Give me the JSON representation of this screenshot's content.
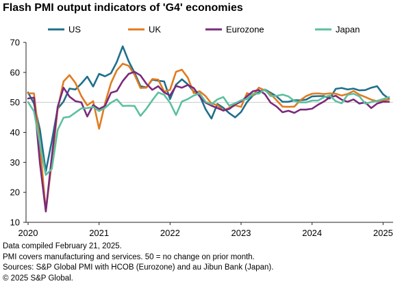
{
  "title": "Flash PMI output indicators of 'G4' economies",
  "chart_data": {
    "type": "line",
    "title": "Flash PMI output indicators of 'G4' economies",
    "xlabel": "",
    "ylabel": "",
    "ylim": [
      10,
      70
    ],
    "y_ticks": [
      10,
      20,
      30,
      40,
      50,
      60,
      70
    ],
    "x_ticks": [
      "2020",
      "2021",
      "2022",
      "2023",
      "2024",
      "2025"
    ],
    "reference_line": 50,
    "grid": false,
    "legend_position": "top",
    "x_start": "2020-01",
    "series": [
      {
        "name": "US",
        "color": "#1f6f8b",
        "values": [
          53.3,
          49.6,
          40.9,
          27.0,
          37.0,
          47.9,
          50.3,
          54.6,
          54.3,
          56.3,
          58.6,
          55.3,
          59.5,
          58.7,
          59.7,
          63.5,
          68.7,
          63.7,
          59.9,
          55.4,
          55.0,
          57.6,
          57.2,
          57.0,
          51.1,
          55.9,
          57.7,
          56.0,
          53.6,
          52.3,
          47.7,
          44.6,
          49.5,
          48.2,
          46.4,
          45.0,
          46.8,
          50.1,
          52.3,
          53.4,
          54.3,
          53.2,
          52.0,
          50.2,
          50.2,
          50.7,
          50.7,
          50.9,
          52.0,
          52.1,
          52.1,
          51.3,
          54.5,
          54.8,
          54.3,
          54.6,
          54.0,
          54.1,
          54.9,
          55.4,
          52.7,
          51.2
        ]
      },
      {
        "name": "UK",
        "color": "#e07b1f",
        "values": [
          53.0,
          53.0,
          36.0,
          13.8,
          30.0,
          47.7,
          57.0,
          59.1,
          56.5,
          52.1,
          49.0,
          50.4,
          41.2,
          49.6,
          56.4,
          60.7,
          62.9,
          62.2,
          59.2,
          54.8,
          54.9,
          57.8,
          57.6,
          53.6,
          54.2,
          60.2,
          60.9,
          58.2,
          53.1,
          53.7,
          52.1,
          49.6,
          49.1,
          47.2,
          48.2,
          49.0,
          48.5,
          53.1,
          52.2,
          54.9,
          54.0,
          52.8,
          50.7,
          48.6,
          48.5,
          48.6,
          50.7,
          52.1,
          52.9,
          53.0,
          52.8,
          53.0,
          52.9,
          52.3,
          52.8,
          53.8,
          52.6,
          51.8,
          50.9,
          50.4,
          50.6,
          51.0
        ]
      },
      {
        "name": "Eurozone",
        "color": "#7b2a7a",
        "values": [
          51.3,
          51.6,
          29.7,
          13.6,
          31.9,
          48.5,
          54.9,
          51.9,
          50.4,
          50.0,
          45.3,
          49.1,
          47.8,
          48.8,
          53.2,
          53.8,
          57.1,
          59.5,
          60.2,
          59.0,
          56.2,
          54.2,
          55.4,
          53.3,
          52.3,
          55.5,
          54.9,
          55.8,
          54.8,
          52.0,
          49.9,
          48.9,
          48.1,
          47.3,
          47.8,
          49.3,
          50.3,
          52.0,
          53.7,
          54.1,
          52.8,
          49.9,
          48.6,
          46.7,
          47.2,
          46.5,
          47.6,
          47.6,
          47.9,
          49.2,
          50.3,
          51.7,
          52.2,
          50.9,
          50.2,
          51.0,
          49.6,
          50.0,
          48.1,
          49.6,
          50.2,
          50.2
        ]
      },
      {
        "name": "Japan",
        "color": "#5cbf9f",
        "values": [
          50.1,
          47.0,
          36.2,
          25.8,
          27.8,
          40.8,
          44.9,
          45.2,
          46.6,
          48.0,
          48.1,
          48.5,
          47.1,
          48.2,
          49.9,
          51.0,
          48.8,
          48.9,
          48.8,
          45.5,
          47.9,
          50.7,
          53.3,
          52.5,
          49.9,
          45.8,
          50.3,
          51.1,
          52.3,
          53.0,
          50.2,
          49.4,
          51.0,
          51.8,
          48.9,
          49.7,
          50.7,
          51.1,
          52.9,
          52.9,
          54.3,
          52.1,
          52.2,
          52.6,
          52.0,
          50.5,
          50.0,
          50.0,
          50.6,
          50.6,
          51.7,
          52.3,
          50.4,
          49.7,
          52.5,
          52.9,
          52.0,
          49.6,
          50.1,
          50.5,
          51.1,
          51.8
        ]
      }
    ]
  },
  "notes": [
    "Data compiled February 21, 2025.",
    "PMI covers manufacturing and services. 50 = no change on prior month.",
    "Sources: S&P Global PMI with HCOB (Eurozone) and au Jibun Bank (Japan).",
    "© 2025 S&P Global."
  ]
}
